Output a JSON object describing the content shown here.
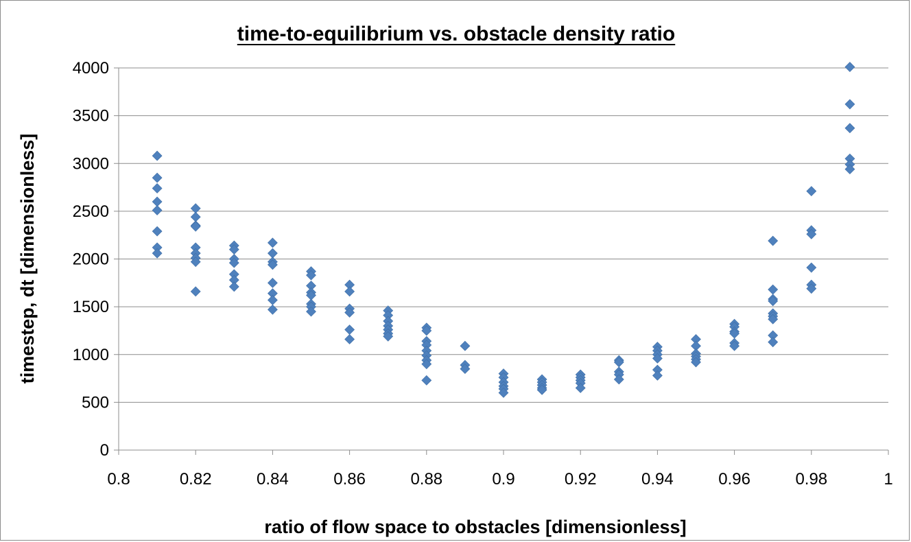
{
  "chart_data": {
    "type": "scatter",
    "title": "time-to-equilibrium vs. obstacle density ratio",
    "xlabel": "ratio of flow space to obstacles [dimensionless]",
    "ylabel": "timestep, dt [dimensionless]",
    "xlim": [
      0.8,
      1.0
    ],
    "ylim": [
      0,
      4000
    ],
    "x_ticks": [
      "0.8",
      "0.82",
      "0.84",
      "0.86",
      "0.88",
      "0.9",
      "0.92",
      "0.94",
      "0.96",
      "0.98",
      "1"
    ],
    "y_ticks": [
      "0",
      "500",
      "1000",
      "1500",
      "2000",
      "2500",
      "3000",
      "3500",
      "4000"
    ],
    "grid": "horizontal",
    "legend": "none",
    "marker": "diamond",
    "color": "#4f81bd",
    "series": [
      {
        "points": [
          [
            0.81,
            3080
          ],
          [
            0.81,
            2850
          ],
          [
            0.81,
            2740
          ],
          [
            0.81,
            2600
          ],
          [
            0.81,
            2510
          ],
          [
            0.81,
            2290
          ],
          [
            0.81,
            2120
          ],
          [
            0.81,
            2060
          ],
          [
            0.82,
            2530
          ],
          [
            0.82,
            2440
          ],
          [
            0.82,
            2350
          ],
          [
            0.82,
            2340
          ],
          [
            0.82,
            2120
          ],
          [
            0.82,
            2060
          ],
          [
            0.82,
            2010
          ],
          [
            0.82,
            1970
          ],
          [
            0.82,
            1660
          ],
          [
            0.83,
            2140
          ],
          [
            0.83,
            2100
          ],
          [
            0.83,
            2000
          ],
          [
            0.83,
            1960
          ],
          [
            0.83,
            1840
          ],
          [
            0.83,
            1780
          ],
          [
            0.83,
            1710
          ],
          [
            0.84,
            2170
          ],
          [
            0.84,
            2060
          ],
          [
            0.84,
            1970
          ],
          [
            0.84,
            1940
          ],
          [
            0.84,
            1750
          ],
          [
            0.84,
            1640
          ],
          [
            0.84,
            1570
          ],
          [
            0.84,
            1470
          ],
          [
            0.85,
            1870
          ],
          [
            0.85,
            1830
          ],
          [
            0.85,
            1720
          ],
          [
            0.85,
            1650
          ],
          [
            0.85,
            1620
          ],
          [
            0.85,
            1530
          ],
          [
            0.85,
            1500
          ],
          [
            0.85,
            1450
          ],
          [
            0.86,
            1730
          ],
          [
            0.86,
            1660
          ],
          [
            0.86,
            1480
          ],
          [
            0.86,
            1440
          ],
          [
            0.86,
            1260
          ],
          [
            0.86,
            1160
          ],
          [
            0.87,
            1460
          ],
          [
            0.87,
            1410
          ],
          [
            0.87,
            1350
          ],
          [
            0.87,
            1300
          ],
          [
            0.87,
            1260
          ],
          [
            0.87,
            1220
          ],
          [
            0.87,
            1190
          ],
          [
            0.88,
            1280
          ],
          [
            0.88,
            1250
          ],
          [
            0.88,
            1140
          ],
          [
            0.88,
            1100
          ],
          [
            0.88,
            1040
          ],
          [
            0.88,
            990
          ],
          [
            0.88,
            940
          ],
          [
            0.88,
            900
          ],
          [
            0.88,
            730
          ],
          [
            0.89,
            1090
          ],
          [
            0.89,
            890
          ],
          [
            0.89,
            850
          ],
          [
            0.9,
            800
          ],
          [
            0.9,
            760
          ],
          [
            0.9,
            710
          ],
          [
            0.9,
            670
          ],
          [
            0.9,
            640
          ],
          [
            0.9,
            600
          ],
          [
            0.91,
            740
          ],
          [
            0.91,
            710
          ],
          [
            0.91,
            680
          ],
          [
            0.91,
            650
          ],
          [
            0.91,
            630
          ],
          [
            0.92,
            790
          ],
          [
            0.92,
            760
          ],
          [
            0.92,
            730
          ],
          [
            0.92,
            700
          ],
          [
            0.92,
            650
          ],
          [
            0.93,
            940
          ],
          [
            0.93,
            920
          ],
          [
            0.93,
            820
          ],
          [
            0.93,
            790
          ],
          [
            0.93,
            740
          ],
          [
            0.94,
            1080
          ],
          [
            0.94,
            1040
          ],
          [
            0.94,
            1000
          ],
          [
            0.94,
            960
          ],
          [
            0.94,
            840
          ],
          [
            0.94,
            780
          ],
          [
            0.95,
            1160
          ],
          [
            0.95,
            1090
          ],
          [
            0.95,
            1010
          ],
          [
            0.95,
            980
          ],
          [
            0.95,
            950
          ],
          [
            0.95,
            920
          ],
          [
            0.96,
            1320
          ],
          [
            0.96,
            1290
          ],
          [
            0.96,
            1240
          ],
          [
            0.96,
            1220
          ],
          [
            0.96,
            1120
          ],
          [
            0.96,
            1090
          ],
          [
            0.97,
            2190
          ],
          [
            0.97,
            1680
          ],
          [
            0.97,
            1580
          ],
          [
            0.97,
            1560
          ],
          [
            0.97,
            1430
          ],
          [
            0.97,
            1400
          ],
          [
            0.97,
            1370
          ],
          [
            0.97,
            1200
          ],
          [
            0.97,
            1130
          ],
          [
            0.98,
            2710
          ],
          [
            0.98,
            2300
          ],
          [
            0.98,
            2260
          ],
          [
            0.98,
            1910
          ],
          [
            0.98,
            1730
          ],
          [
            0.98,
            1690
          ],
          [
            0.99,
            4010
          ],
          [
            0.99,
            3620
          ],
          [
            0.99,
            3370
          ],
          [
            0.99,
            3050
          ],
          [
            0.99,
            2990
          ],
          [
            0.99,
            2940
          ]
        ]
      }
    ]
  }
}
